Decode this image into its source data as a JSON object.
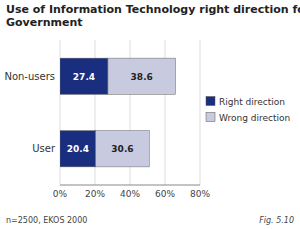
{
  "chart_data": {
    "type": "bar",
    "orientation": "horizontal",
    "stacked": true,
    "title": "Use of Information Technology right direction for\nGovernment",
    "categories": [
      "Non-users",
      "User"
    ],
    "series": [
      {
        "name": "Right direction",
        "color": "#1A2E80",
        "values": [
          27.4,
          20.4
        ]
      },
      {
        "name": "Wrong direction",
        "color": "#C8CADF",
        "values": [
          38.6,
          30.6
        ]
      }
    ],
    "xlim": [
      0,
      80
    ],
    "xticks": [
      {
        "value": 0,
        "label": "0%"
      },
      {
        "value": 20,
        "label": "20%"
      },
      {
        "value": 40,
        "label": "40%"
      },
      {
        "value": 60,
        "label": "60%"
      },
      {
        "value": 80,
        "label": "80%"
      }
    ],
    "grid": true,
    "data_labels": true,
    "legend": "right",
    "annotations": [
      "n=2500, EKOS 2000",
      "Fig. 5.10"
    ]
  }
}
